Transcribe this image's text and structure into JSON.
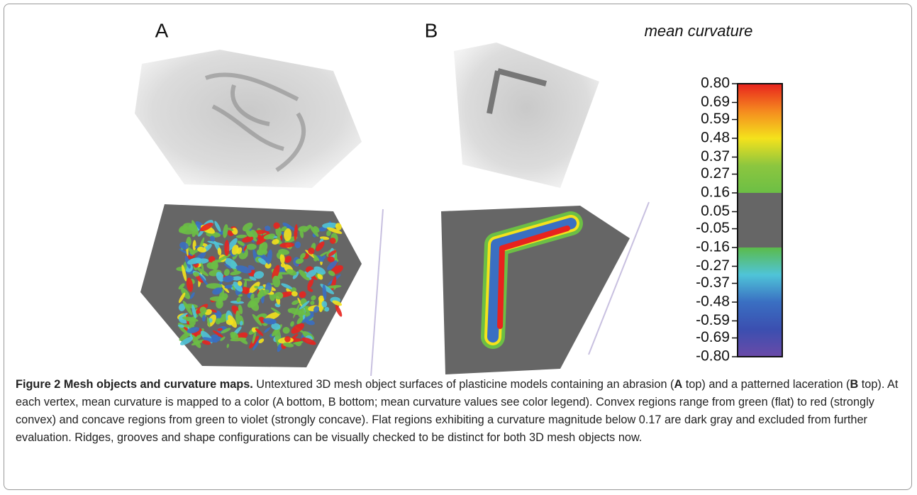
{
  "panels": {
    "a": "A",
    "b": "B"
  },
  "colorbar": {
    "title": "mean curvature",
    "ticks": [
      {
        "value": 0.8,
        "label": "0.80"
      },
      {
        "value": 0.69,
        "label": "0.69"
      },
      {
        "value": 0.59,
        "label": "0.59"
      },
      {
        "value": 0.48,
        "label": "0.48"
      },
      {
        "value": 0.37,
        "label": "0.37"
      },
      {
        "value": 0.27,
        "label": "0.27"
      },
      {
        "value": 0.16,
        "label": "0.16"
      },
      {
        "value": 0.05,
        "label": "0.05"
      },
      {
        "value": -0.05,
        "label": "-0.05"
      },
      {
        "value": -0.16,
        "label": "-0.16"
      },
      {
        "value": -0.27,
        "label": "-0.27"
      },
      {
        "value": -0.37,
        "label": "-0.37"
      },
      {
        "value": -0.48,
        "label": "-0.48"
      },
      {
        "value": -0.59,
        "label": "-0.59"
      },
      {
        "value": -0.69,
        "label": "-0.69"
      },
      {
        "value": -0.8,
        "label": "-0.80"
      }
    ]
  },
  "caption": {
    "label": "Figure 2 Mesh objects and curvature maps.",
    "text1": " Untextured 3D mesh object surfaces of plasticine models containing an abrasion (",
    "bold1": "A",
    "text2": " top) and a patterned laceration (",
    "bold2": "B",
    "text3": " top). At each vertex, mean curvature is mapped to a color (A bottom, B bottom; mean curvature values see color legend). Convex regions range from green (flat) to red (strongly convex) and concave regions from green to violet (strongly concave). Flat regions exhibiting a curvature magnitude below 0.17 are dark gray and excluded from further evaluation. Ridges, grooves and shape configurations can be visually checked to be distinct for both 3D mesh objects now."
  }
}
